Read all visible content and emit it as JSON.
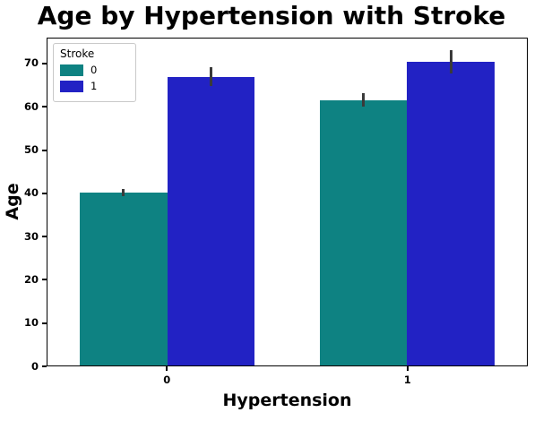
{
  "chart_data": {
    "type": "bar",
    "title": "Age by Hypertension with Stroke",
    "xlabel": "Hypertension",
    "ylabel": "Age",
    "categories": [
      "0",
      "1"
    ],
    "series": [
      {
        "name": "0",
        "color": "#0e8282",
        "values": [
          40.2,
          61.7
        ],
        "errors": [
          [
            39.3,
            41.1
          ],
          [
            60.2,
            63.2
          ]
        ]
      },
      {
        "name": "1",
        "color": "#2222c4",
        "values": [
          67.0,
          70.6
        ],
        "errors": [
          [
            64.9,
            69.4
          ],
          [
            67.9,
            73.3
          ]
        ]
      }
    ],
    "ylim": [
      0,
      76
    ],
    "yticks": [
      0,
      10,
      20,
      30,
      40,
      50,
      60,
      70
    ],
    "legend": {
      "title": "Stroke",
      "entries": [
        "0",
        "1"
      ],
      "position": "upper left"
    },
    "grid": false,
    "error_bar_color": "#3a3a3a"
  }
}
